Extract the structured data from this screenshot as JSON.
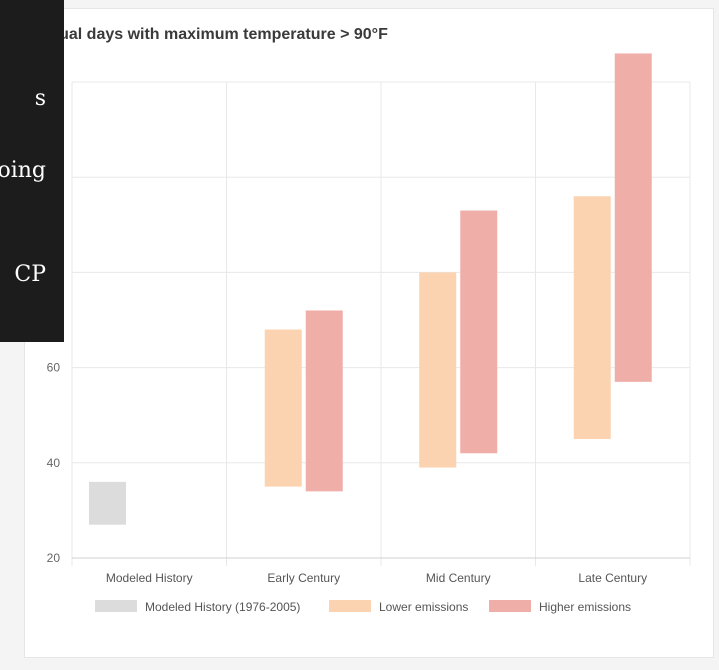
{
  "chart_data": {
    "type": "bar",
    "subtype": "floating-range",
    "title": "Annual days with maximum temperature > 90°F",
    "categories": [
      "Modeled History",
      "Early Century",
      "Mid Century",
      "Late Century"
    ],
    "ylim": [
      20,
      120
    ],
    "yticks": [
      20,
      40,
      60
    ],
    "grid": true,
    "legend_position": "bottom",
    "series": [
      {
        "name": "Modeled History (1976-2005)",
        "color": "#dcdcdc",
        "ranges": [
          [
            27,
            36
          ],
          null,
          null,
          null
        ]
      },
      {
        "name": "Lower emissions",
        "color": "#fbd3b1",
        "ranges": [
          null,
          [
            35,
            68
          ],
          [
            39,
            80
          ],
          [
            45,
            96
          ]
        ]
      },
      {
        "name": "Higher emissions",
        "color": "#f0aea9",
        "ranges": [
          null,
          [
            34,
            72
          ],
          [
            42,
            93
          ],
          [
            57,
            126
          ]
        ]
      }
    ]
  },
  "overlay": {
    "lines": [
      "s",
      "oing",
      "",
      "CP"
    ]
  }
}
